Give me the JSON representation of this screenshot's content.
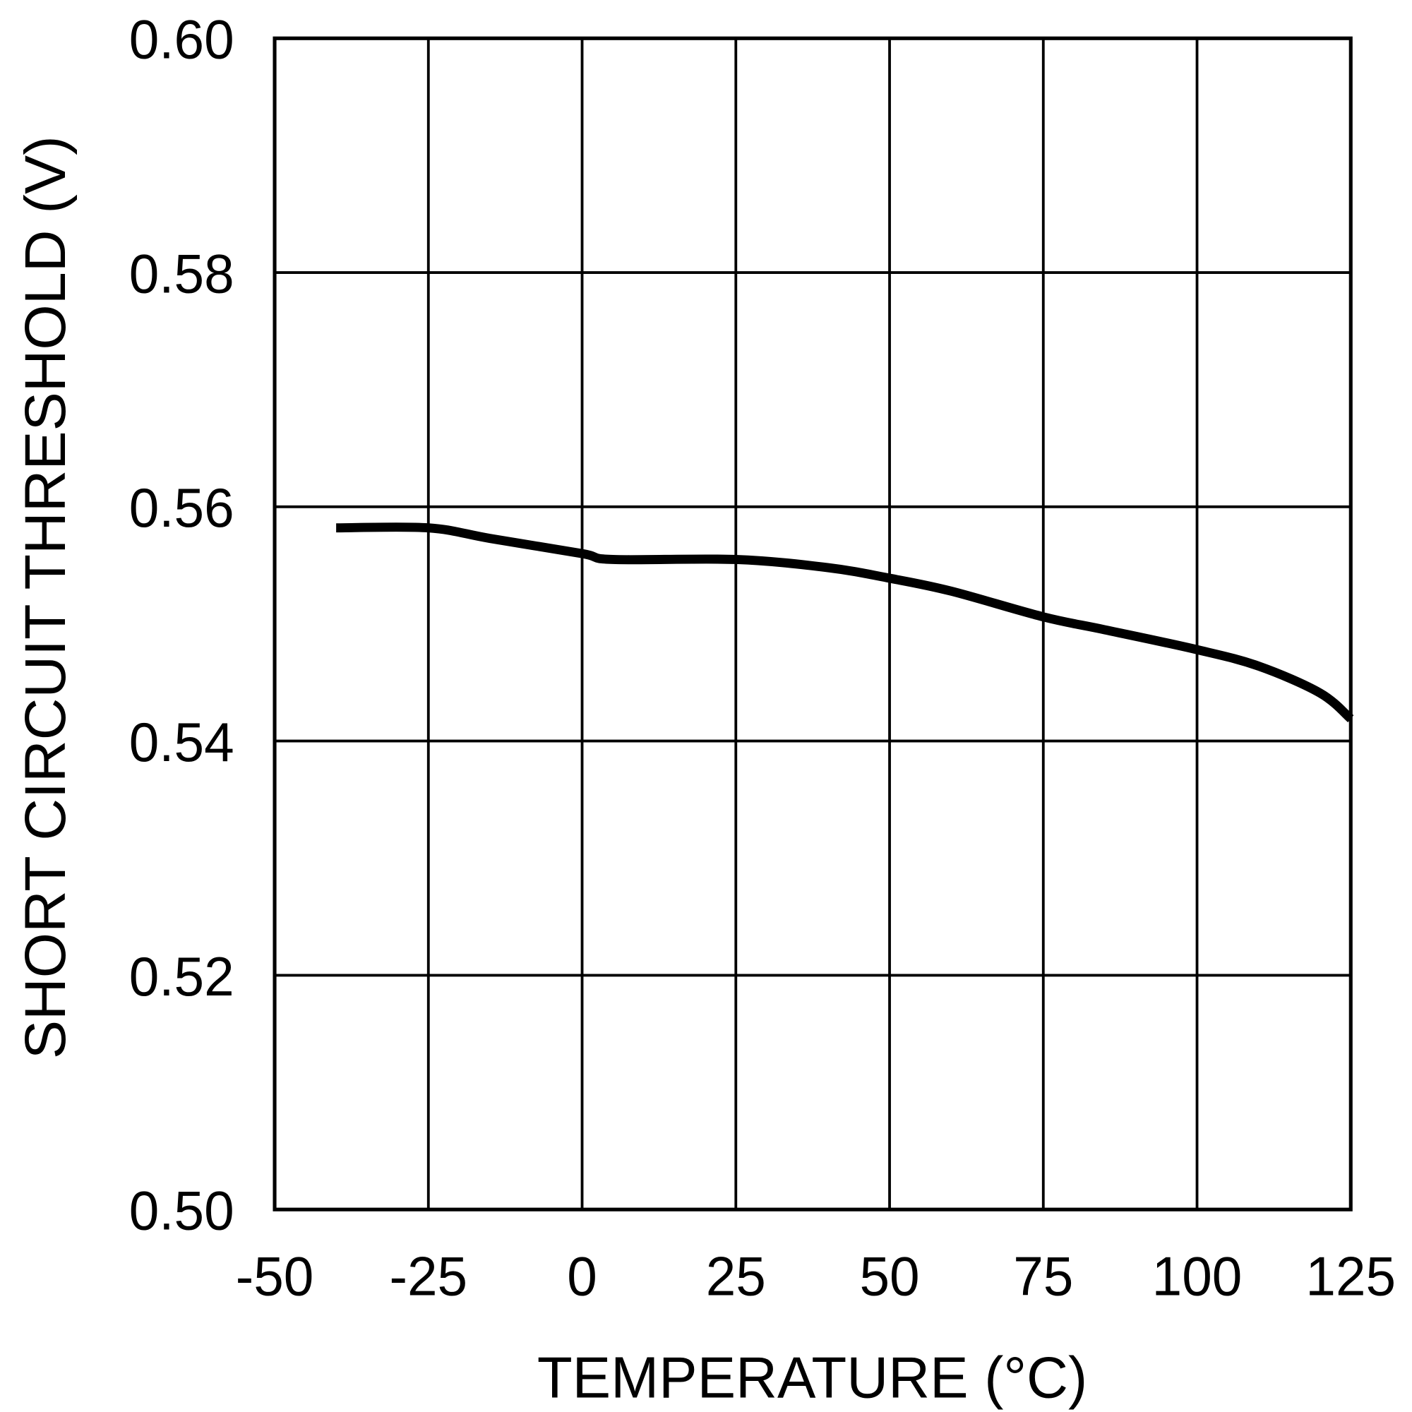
{
  "chart_data": {
    "type": "line",
    "title": "",
    "xlabel": "TEMPERATURE (°C)",
    "ylabel": "SHORT CIRCUIT THRESHOLD (V)",
    "xlim": [
      -50,
      125
    ],
    "ylim": [
      0.5,
      0.6
    ],
    "xticks": [
      "-50",
      "-25",
      "0",
      "25",
      "50",
      "75",
      "100",
      "125"
    ],
    "yticks": [
      "0.50",
      "0.52",
      "0.54",
      "0.56",
      "0.58",
      "0.60"
    ],
    "grid": true,
    "line_color": "#000000",
    "series": [
      {
        "x": [
          -40,
          -25,
          -15,
          0,
          5,
          25,
          40,
          50,
          60,
          75,
          85,
          100,
          110,
          120,
          125
        ],
        "y": [
          0.5582,
          0.5582,
          0.5573,
          0.556,
          0.5555,
          0.5555,
          0.5548,
          0.5539,
          0.5528,
          0.5506,
          0.5495,
          0.5478,
          0.5464,
          0.5441,
          0.5419
        ]
      }
    ]
  }
}
